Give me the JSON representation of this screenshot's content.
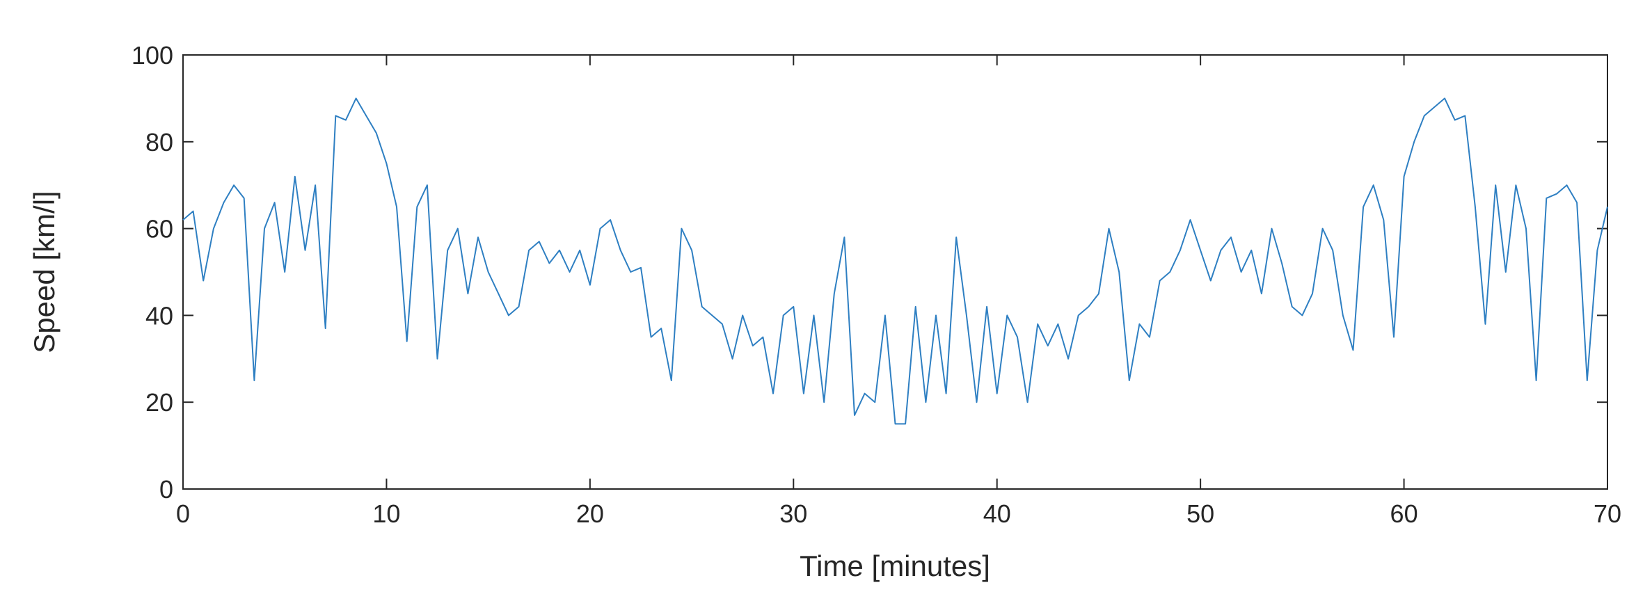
{
  "chart_data": {
    "type": "line",
    "xlabel": "Time [minutes]",
    "ylabel": "Speed [km/l]",
    "x": [
      0,
      0.5,
      1,
      1.5,
      2,
      2.5,
      3,
      3.5,
      4,
      4.5,
      5,
      5.5,
      6,
      6.5,
      7,
      7.5,
      8,
      8.5,
      9,
      9.5,
      10,
      10.5,
      11,
      11.5,
      12,
      12.5,
      13,
      13.5,
      14,
      14.5,
      15,
      15.5,
      16,
      16.5,
      17,
      17.5,
      18,
      18.5,
      19,
      19.5,
      20,
      20.5,
      21,
      21.5,
      22,
      22.5,
      23,
      23.5,
      24,
      24.5,
      25,
      25.5,
      26,
      26.5,
      27,
      27.5,
      28,
      28.5,
      29,
      29.5,
      30,
      30.5,
      31,
      31.5,
      32,
      32.5,
      33,
      33.5,
      34,
      34.5,
      35,
      35.5,
      36,
      36.5,
      37,
      37.5,
      38,
      38.5,
      39,
      39.5,
      40,
      40.5,
      41,
      41.5,
      42,
      42.5,
      43,
      43.5,
      44,
      44.5,
      45,
      45.5,
      46,
      46.5,
      47,
      47.5,
      48,
      48.5,
      49,
      49.5,
      50,
      50.5,
      51,
      51.5,
      52,
      52.5,
      53,
      53.5,
      54,
      54.5,
      55,
      55.5,
      56,
      56.5,
      57,
      57.5,
      58,
      58.5,
      59,
      59.5,
      60,
      60.5,
      61,
      61.5,
      62,
      62.5,
      63,
      63.5,
      64,
      64.5,
      65,
      65.5,
      66,
      66.5,
      67,
      67.5,
      68,
      68.5,
      69,
      69.5,
      70
    ],
    "series": [
      {
        "color": "#2e7fc2",
        "values": [
          62,
          64,
          48,
          60,
          66,
          70,
          67,
          25,
          60,
          66,
          50,
          72,
          55,
          70,
          37,
          86,
          85,
          90,
          86,
          82,
          75,
          65,
          34,
          65,
          70,
          30,
          55,
          60,
          45,
          58,
          50,
          45,
          40,
          42,
          55,
          57,
          52,
          55,
          50,
          55,
          47,
          60,
          62,
          55,
          50,
          51,
          35,
          37,
          25,
          60,
          55,
          42,
          40,
          38,
          30,
          40,
          33,
          35,
          22,
          40,
          42,
          22,
          40,
          20,
          45,
          58,
          17,
          22,
          20,
          40,
          15,
          15,
          42,
          20,
          40,
          22,
          58,
          40,
          20,
          42,
          22,
          40,
          35,
          20,
          38,
          33,
          38,
          30,
          40,
          42,
          45,
          60,
          50,
          25,
          38,
          35,
          48,
          50,
          55,
          62,
          55,
          48,
          55,
          58,
          50,
          55,
          45,
          60,
          52,
          42,
          40,
          45,
          60,
          55,
          40,
          32,
          65,
          70,
          62,
          35,
          72,
          80,
          86,
          88,
          90,
          85,
          86,
          65,
          38,
          70,
          50,
          70,
          60,
          25,
          67,
          68,
          70,
          66,
          25,
          55,
          65
        ]
      }
    ],
    "xlim": [
      0,
      70
    ],
    "xticks": [
      0,
      10,
      20,
      30,
      40,
      50,
      60,
      70
    ],
    "ylim": [
      0,
      100
    ],
    "yticks": [
      0,
      20,
      40,
      60,
      80,
      100
    ]
  }
}
